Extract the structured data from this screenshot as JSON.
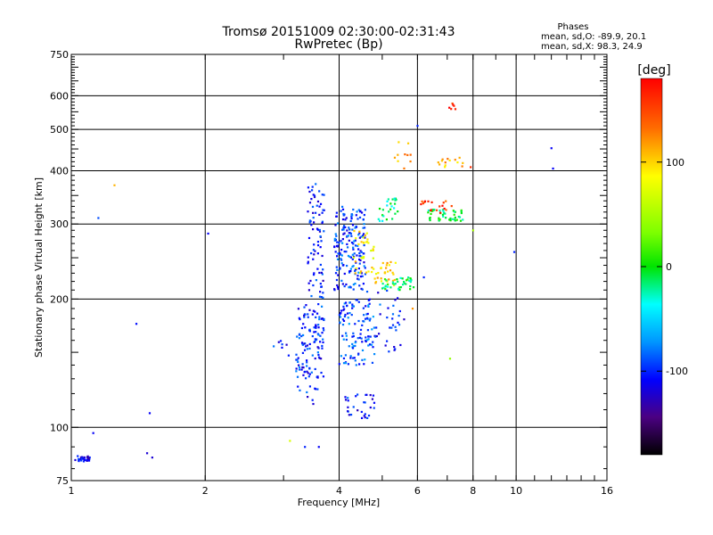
{
  "chart_data": {
    "type": "scatter",
    "title": "Tromsø 20151009 02:30:00-02:31:43",
    "subtitle": "RwPretec (Bp)",
    "stats": {
      "heading": "Phases",
      "line_o": "mean, sd,O: -89.9, 20.1",
      "line_x": "mean, sd,X:  98.3, 24.9"
    },
    "xlabel": "Frequency [MHz]",
    "ylabel": "Stationary phase Virtual Height [km]",
    "x_scale": "log",
    "y_scale": "log",
    "xlim": [
      1,
      16
    ],
    "ylim": [
      75,
      750
    ],
    "x_ticks": [
      1,
      2,
      4,
      6,
      8,
      10,
      16
    ],
    "x_tick_labels": [
      "1",
      "2",
      "4",
      "6",
      "8",
      "10",
      "16"
    ],
    "y_ticks": [
      75,
      100,
      200,
      300,
      400,
      500,
      600,
      750
    ],
    "y_tick_labels": [
      "75",
      "100",
      "200",
      "300",
      "400",
      "500",
      "600",
      "750"
    ],
    "grid": true,
    "colorbar": {
      "label": "[deg]",
      "range": [
        -180,
        180
      ],
      "ticks": [
        100,
        0,
        -100
      ],
      "tick_labels": [
        "100",
        "0",
        "-100"
      ]
    },
    "clusters": [
      {
        "f": [
          1.02,
          1.1
        ],
        "h": [
          83,
          86
        ],
        "phase": -110,
        "n": 30
      },
      {
        "f": [
          3.2,
          3.7
        ],
        "h": [
          130,
          195
        ],
        "phase": -100,
        "n": 120
      },
      {
        "f": [
          3.4,
          3.7
        ],
        "h": [
          200,
          375
        ],
        "phase": -105,
        "n": 80
      },
      {
        "f": [
          3.9,
          4.6
        ],
        "h": [
          210,
          330
        ],
        "phase": -95,
        "n": 180
      },
      {
        "f": [
          4.0,
          4.8
        ],
        "h": [
          140,
          200
        ],
        "phase": -90,
        "n": 110
      },
      {
        "f": [
          4.1,
          4.8
        ],
        "h": [
          105,
          120
        ],
        "phase": -105,
        "n": 30
      },
      {
        "f": [
          4.3,
          4.8
        ],
        "h": [
          230,
          290
        ],
        "phase": 90,
        "n": 35
      },
      {
        "f": [
          4.8,
          5.4
        ],
        "h": [
          215,
          245
        ],
        "phase": 100,
        "n": 30
      },
      {
        "f": [
          5.0,
          5.9
        ],
        "h": [
          210,
          225
        ],
        "phase": -10,
        "n": 40
      },
      {
        "f": [
          4.6,
          5.6
        ],
        "h": [
          150,
          210
        ],
        "phase": -100,
        "n": 40
      },
      {
        "f": [
          4.9,
          5.5
        ],
        "h": [
          305,
          345
        ],
        "phase": -20,
        "n": 25
      },
      {
        "f": [
          6.3,
          7.6
        ],
        "h": [
          305,
          325
        ],
        "phase": -10,
        "n": 45
      },
      {
        "f": [
          6.1,
          7.2
        ],
        "h": [
          318,
          340
        ],
        "phase": 155,
        "n": 18
      },
      {
        "f": [
          6.6,
          7.6
        ],
        "h": [
          405,
          430
        ],
        "phase": 110,
        "n": 14
      },
      {
        "f": [
          7.0,
          7.3
        ],
        "h": [
          555,
          585
        ],
        "phase": 165,
        "n": 6
      },
      {
        "f": [
          5.3,
          5.8
        ],
        "h": [
          405,
          470
        ],
        "phase": 110,
        "n": 10
      },
      {
        "f": [
          3.1,
          3.6
        ],
        "h": [
          112,
          125
        ],
        "phase": -100,
        "n": 10
      },
      {
        "f": [
          2.9,
          3.1
        ],
        "h": [
          145,
          160
        ],
        "phase": -105,
        "n": 6
      }
    ],
    "points": [
      {
        "f": 1.15,
        "h": 310,
        "phase": -90
      },
      {
        "f": 1.25,
        "h": 370,
        "phase": 110
      },
      {
        "f": 1.4,
        "h": 175,
        "phase": -105
      },
      {
        "f": 1.5,
        "h": 108,
        "phase": -110
      },
      {
        "f": 1.12,
        "h": 97,
        "phase": -110
      },
      {
        "f": 1.48,
        "h": 87,
        "phase": -120
      },
      {
        "f": 1.52,
        "h": 85,
        "phase": -120
      },
      {
        "f": 2.03,
        "h": 285,
        "phase": -110
      },
      {
        "f": 2.85,
        "h": 155,
        "phase": -80
      },
      {
        "f": 3.1,
        "h": 93,
        "phase": 70
      },
      {
        "f": 3.35,
        "h": 90,
        "phase": -100
      },
      {
        "f": 3.6,
        "h": 90,
        "phase": -110
      },
      {
        "f": 7.1,
        "h": 145,
        "phase": 40
      },
      {
        "f": 8.0,
        "h": 290,
        "phase": 50
      },
      {
        "f": 6.0,
        "h": 510,
        "phase": -100
      },
      {
        "f": 9.9,
        "h": 258,
        "phase": -100
      },
      {
        "f": 12.0,
        "h": 452,
        "phase": -110
      },
      {
        "f": 12.1,
        "h": 405,
        "phase": -110
      },
      {
        "f": 7.9,
        "h": 408,
        "phase": 160
      },
      {
        "f": 5.85,
        "h": 190,
        "phase": 120
      },
      {
        "f": 6.2,
        "h": 225,
        "phase": -100
      }
    ]
  }
}
